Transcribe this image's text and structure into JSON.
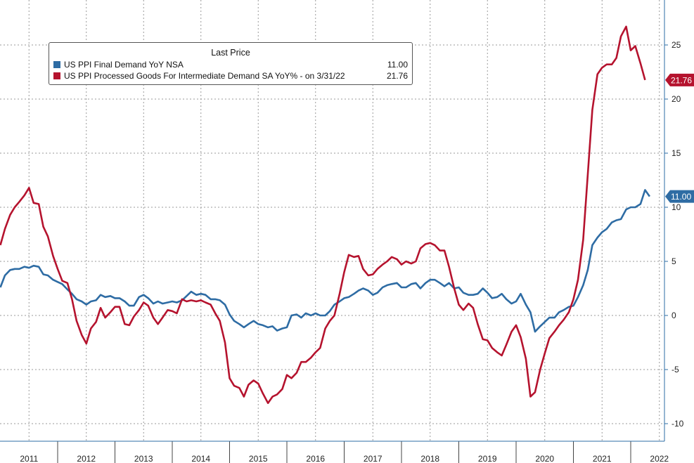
{
  "chart_data": {
    "type": "line",
    "legend": {
      "header": "Last Price",
      "placement": "top-left",
      "entries": [
        {
          "label": "US PPI Final Demand YoY NSA",
          "value": "11.00",
          "color": "#2e6ca4"
        },
        {
          "label": "US PPI Processed Goods For Intermediate Demand SA YoY% -  on 3/31/22",
          "value": "21.76",
          "color": "#b5132e"
        }
      ]
    },
    "x_labels": [
      "2011",
      "2012",
      "2013",
      "2014",
      "2015",
      "2016",
      "2017",
      "2018",
      "2019",
      "2020",
      "2021",
      "2022"
    ],
    "y_ticks": [
      "25",
      "20",
      "15",
      "10",
      "5",
      "0",
      "-5",
      "-10"
    ],
    "ylim": [
      -11,
      29
    ],
    "xlim": [
      2010.5,
      2022.4
    ],
    "grid": true,
    "series": [
      {
        "name": "US PPI Final Demand YoY NSA",
        "color": "#2e6ca4",
        "last_value": "11.00",
        "points": [
          [
            2010.5,
            2.6
          ],
          [
            2010.58,
            3.7
          ],
          [
            2010.67,
            4.2
          ],
          [
            2010.75,
            4.3
          ],
          [
            2010.83,
            4.3
          ],
          [
            2010.92,
            4.5
          ],
          [
            2011.0,
            4.4
          ],
          [
            2011.08,
            4.6
          ],
          [
            2011.17,
            4.5
          ],
          [
            2011.25,
            3.8
          ],
          [
            2011.33,
            3.7
          ],
          [
            2011.42,
            3.3
          ],
          [
            2011.5,
            3.1
          ],
          [
            2011.58,
            2.9
          ],
          [
            2011.67,
            2.4
          ],
          [
            2011.75,
            2.0
          ],
          [
            2011.83,
            1.5
          ],
          [
            2011.92,
            1.3
          ],
          [
            2012.0,
            1.0
          ],
          [
            2012.08,
            1.3
          ],
          [
            2012.17,
            1.4
          ],
          [
            2012.25,
            1.9
          ],
          [
            2012.33,
            1.7
          ],
          [
            2012.42,
            1.8
          ],
          [
            2012.5,
            1.6
          ],
          [
            2012.58,
            1.6
          ],
          [
            2012.67,
            1.3
          ],
          [
            2012.75,
            0.9
          ],
          [
            2012.83,
            0.9
          ],
          [
            2012.92,
            1.7
          ],
          [
            2013.0,
            1.9
          ],
          [
            2013.08,
            1.6
          ],
          [
            2013.17,
            1.1
          ],
          [
            2013.25,
            1.3
          ],
          [
            2013.33,
            1.1
          ],
          [
            2013.42,
            1.2
          ],
          [
            2013.5,
            1.3
          ],
          [
            2013.58,
            1.2
          ],
          [
            2013.67,
            1.4
          ],
          [
            2013.75,
            1.8
          ],
          [
            2013.83,
            2.2
          ],
          [
            2013.92,
            1.9
          ],
          [
            2014.0,
            2.0
          ],
          [
            2014.08,
            1.9
          ],
          [
            2014.17,
            1.5
          ],
          [
            2014.25,
            1.5
          ],
          [
            2014.33,
            1.4
          ],
          [
            2014.42,
            1.0
          ],
          [
            2014.5,
            0.1
          ],
          [
            2014.58,
            -0.5
          ],
          [
            2014.67,
            -0.8
          ],
          [
            2014.75,
            -1.1
          ],
          [
            2014.83,
            -0.8
          ],
          [
            2014.92,
            -0.5
          ],
          [
            2015.0,
            -0.8
          ],
          [
            2015.08,
            -0.9
          ],
          [
            2015.17,
            -1.1
          ],
          [
            2015.25,
            -1.0
          ],
          [
            2015.33,
            -1.4
          ],
          [
            2015.42,
            -1.2
          ],
          [
            2015.5,
            -1.1
          ],
          [
            2015.58,
            0.0
          ],
          [
            2015.67,
            0.1
          ],
          [
            2015.75,
            -0.2
          ],
          [
            2015.83,
            0.2
          ],
          [
            2015.92,
            0.0
          ],
          [
            2016.0,
            0.2
          ],
          [
            2016.08,
            0.0
          ],
          [
            2016.17,
            0.0
          ],
          [
            2016.25,
            0.4
          ],
          [
            2016.33,
            1.0
          ],
          [
            2016.42,
            1.3
          ],
          [
            2016.5,
            1.6
          ],
          [
            2016.58,
            1.7
          ],
          [
            2016.67,
            2.0
          ],
          [
            2016.75,
            2.3
          ],
          [
            2016.83,
            2.5
          ],
          [
            2016.92,
            2.3
          ],
          [
            2017.0,
            1.9
          ],
          [
            2017.08,
            2.1
          ],
          [
            2017.17,
            2.6
          ],
          [
            2017.25,
            2.8
          ],
          [
            2017.33,
            2.9
          ],
          [
            2017.42,
            3.0
          ],
          [
            2017.5,
            2.6
          ],
          [
            2017.58,
            2.6
          ],
          [
            2017.67,
            2.9
          ],
          [
            2017.75,
            3.0
          ],
          [
            2017.83,
            2.5
          ],
          [
            2017.92,
            3.0
          ],
          [
            2018.0,
            3.3
          ],
          [
            2018.08,
            3.3
          ],
          [
            2018.17,
            3.0
          ],
          [
            2018.25,
            2.7
          ],
          [
            2018.33,
            3.0
          ],
          [
            2018.42,
            2.5
          ],
          [
            2018.5,
            2.6
          ],
          [
            2018.58,
            2.1
          ],
          [
            2018.67,
            1.9
          ],
          [
            2018.75,
            1.9
          ],
          [
            2018.83,
            2.0
          ],
          [
            2018.92,
            2.5
          ],
          [
            2019.0,
            2.1
          ],
          [
            2019.08,
            1.6
          ],
          [
            2019.17,
            1.7
          ],
          [
            2019.25,
            2.0
          ],
          [
            2019.33,
            1.5
          ],
          [
            2019.42,
            1.1
          ],
          [
            2019.5,
            1.3
          ],
          [
            2019.58,
            2.0
          ],
          [
            2019.67,
            1.0
          ],
          [
            2019.75,
            0.3
          ],
          [
            2019.83,
            -1.5
          ],
          [
            2019.92,
            -1.0
          ],
          [
            2020.0,
            -0.6
          ],
          [
            2020.08,
            -0.2
          ],
          [
            2020.17,
            -0.2
          ],
          [
            2020.25,
            0.3
          ],
          [
            2020.33,
            0.5
          ],
          [
            2020.42,
            0.8
          ],
          [
            2020.5,
            0.9
          ],
          [
            2020.58,
            1.7
          ],
          [
            2020.67,
            2.8
          ],
          [
            2020.75,
            4.2
          ],
          [
            2020.83,
            6.5
          ],
          [
            2020.92,
            7.2
          ],
          [
            2021.0,
            7.7
          ],
          [
            2021.08,
            8.0
          ],
          [
            2021.17,
            8.6
          ],
          [
            2021.25,
            8.8
          ],
          [
            2021.33,
            8.9
          ],
          [
            2021.42,
            9.8
          ],
          [
            2021.5,
            10.0
          ],
          [
            2021.58,
            10.0
          ],
          [
            2021.67,
            10.3
          ],
          [
            2021.75,
            11.6
          ],
          [
            2021.83,
            11.0
          ]
        ]
      },
      {
        "name": "US PPI Processed Goods For Intermediate Demand SA YoY% -  on 3/31/22",
        "color": "#b5132e",
        "last_value": "21.76",
        "points": [
          [
            2010.5,
            6.5
          ],
          [
            2010.58,
            8.0
          ],
          [
            2010.67,
            9.3
          ],
          [
            2010.75,
            10.0
          ],
          [
            2010.83,
            10.5
          ],
          [
            2010.92,
            11.1
          ],
          [
            2011.0,
            11.8
          ],
          [
            2011.08,
            10.4
          ],
          [
            2011.17,
            10.3
          ],
          [
            2011.25,
            8.2
          ],
          [
            2011.33,
            7.3
          ],
          [
            2011.42,
            5.5
          ],
          [
            2011.5,
            4.3
          ],
          [
            2011.58,
            3.2
          ],
          [
            2011.67,
            3.0
          ],
          [
            2011.75,
            1.5
          ],
          [
            2011.83,
            -0.5
          ],
          [
            2011.92,
            -1.8
          ],
          [
            2012.0,
            -2.6
          ],
          [
            2012.08,
            -1.2
          ],
          [
            2012.17,
            -0.6
          ],
          [
            2012.25,
            0.7
          ],
          [
            2012.33,
            -0.2
          ],
          [
            2012.42,
            0.3
          ],
          [
            2012.5,
            0.8
          ],
          [
            2012.58,
            0.8
          ],
          [
            2012.67,
            -0.8
          ],
          [
            2012.75,
            -0.9
          ],
          [
            2012.83,
            -0.1
          ],
          [
            2012.92,
            0.5
          ],
          [
            2013.0,
            1.2
          ],
          [
            2013.08,
            0.9
          ],
          [
            2013.17,
            -0.2
          ],
          [
            2013.25,
            -0.8
          ],
          [
            2013.33,
            -0.2
          ],
          [
            2013.42,
            0.5
          ],
          [
            2013.5,
            0.4
          ],
          [
            2013.58,
            0.2
          ],
          [
            2013.67,
            1.5
          ],
          [
            2013.75,
            1.3
          ],
          [
            2013.83,
            1.4
          ],
          [
            2013.92,
            1.3
          ],
          [
            2014.0,
            1.4
          ],
          [
            2014.08,
            1.2
          ],
          [
            2014.17,
            1.0
          ],
          [
            2014.25,
            0.2
          ],
          [
            2014.33,
            -0.5
          ],
          [
            2014.42,
            -2.5
          ],
          [
            2014.5,
            -5.8
          ],
          [
            2014.58,
            -6.5
          ],
          [
            2014.67,
            -6.7
          ],
          [
            2014.75,
            -7.5
          ],
          [
            2014.83,
            -6.4
          ],
          [
            2014.92,
            -6.0
          ],
          [
            2015.0,
            -6.3
          ],
          [
            2015.08,
            -7.2
          ],
          [
            2015.17,
            -8.1
          ],
          [
            2015.25,
            -7.5
          ],
          [
            2015.33,
            -7.3
          ],
          [
            2015.42,
            -6.8
          ],
          [
            2015.5,
            -5.5
          ],
          [
            2015.58,
            -5.8
          ],
          [
            2015.67,
            -5.3
          ],
          [
            2015.75,
            -4.3
          ],
          [
            2015.83,
            -4.3
          ],
          [
            2015.92,
            -3.9
          ],
          [
            2016.0,
            -3.4
          ],
          [
            2016.08,
            -3.0
          ],
          [
            2016.17,
            -1.2
          ],
          [
            2016.25,
            -0.5
          ],
          [
            2016.33,
            0.0
          ],
          [
            2016.42,
            2.0
          ],
          [
            2016.5,
            4.0
          ],
          [
            2016.58,
            5.6
          ],
          [
            2016.67,
            5.4
          ],
          [
            2016.75,
            5.5
          ],
          [
            2016.83,
            4.3
          ],
          [
            2016.92,
            3.7
          ],
          [
            2017.0,
            3.8
          ],
          [
            2017.08,
            4.3
          ],
          [
            2017.17,
            4.7
          ],
          [
            2017.25,
            5.0
          ],
          [
            2017.33,
            5.4
          ],
          [
            2017.42,
            5.2
          ],
          [
            2017.5,
            4.7
          ],
          [
            2017.58,
            5.0
          ],
          [
            2017.67,
            4.8
          ],
          [
            2017.75,
            5.0
          ],
          [
            2017.83,
            6.2
          ],
          [
            2017.92,
            6.6
          ],
          [
            2018.0,
            6.7
          ],
          [
            2018.08,
            6.5
          ],
          [
            2018.17,
            6.0
          ],
          [
            2018.25,
            6.0
          ],
          [
            2018.33,
            4.5
          ],
          [
            2018.42,
            2.5
          ],
          [
            2018.5,
            1.0
          ],
          [
            2018.58,
            0.5
          ],
          [
            2018.67,
            1.1
          ],
          [
            2018.75,
            0.7
          ],
          [
            2018.83,
            -0.8
          ],
          [
            2018.92,
            -2.2
          ],
          [
            2019.0,
            -2.3
          ],
          [
            2019.08,
            -3.0
          ],
          [
            2019.17,
            -3.4
          ],
          [
            2019.25,
            -3.7
          ],
          [
            2019.33,
            -2.7
          ],
          [
            2019.42,
            -1.5
          ],
          [
            2019.5,
            -0.9
          ],
          [
            2019.58,
            -2.0
          ],
          [
            2019.67,
            -4.0
          ],
          [
            2019.75,
            -7.5
          ],
          [
            2019.83,
            -7.1
          ],
          [
            2019.92,
            -5.0
          ],
          [
            2020.0,
            -3.5
          ],
          [
            2020.08,
            -2.1
          ],
          [
            2020.17,
            -1.5
          ],
          [
            2020.25,
            -0.9
          ],
          [
            2020.33,
            -0.4
          ],
          [
            2020.42,
            0.3
          ],
          [
            2020.5,
            1.5
          ],
          [
            2020.58,
            3.3
          ],
          [
            2020.67,
            7.0
          ],
          [
            2020.75,
            13.0
          ],
          [
            2020.83,
            19.0
          ],
          [
            2020.92,
            22.3
          ],
          [
            2021.0,
            22.9
          ],
          [
            2021.08,
            23.2
          ],
          [
            2021.17,
            23.2
          ],
          [
            2021.25,
            23.8
          ],
          [
            2021.33,
            25.8
          ],
          [
            2021.42,
            26.7
          ],
          [
            2021.5,
            24.5
          ],
          [
            2021.58,
            24.9
          ],
          [
            2021.67,
            23.3
          ],
          [
            2021.75,
            21.76
          ]
        ]
      }
    ]
  }
}
